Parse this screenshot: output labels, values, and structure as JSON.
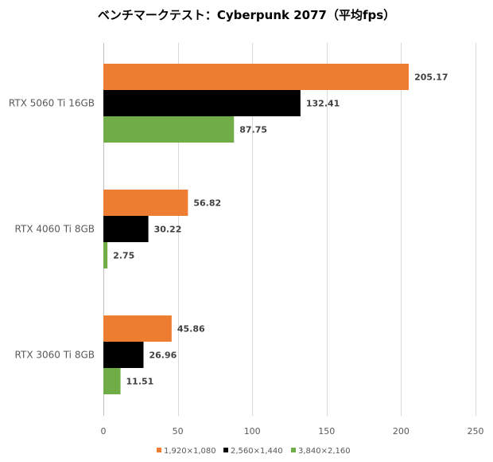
{
  "chart_data": {
    "type": "bar",
    "orientation": "horizontal",
    "title": "ベンチマークテスト：Cyberpunk 2077（平均fps）",
    "categories": [
      "RTX 5060 Ti 16GB",
      "RTX 4060 Ti 8GB",
      "RTX 3060 Ti 8GB"
    ],
    "series": [
      {
        "name": "1,920×1,080",
        "color": "#ed7d31",
        "values": [
          205.17,
          56.82,
          45.86
        ]
      },
      {
        "name": "2,560×1,440",
        "color": "#000000",
        "values": [
          132.41,
          30.22,
          26.96
        ]
      },
      {
        "name": "3,840×2,160",
        "color": "#70ad47",
        "values": [
          87.75,
          2.75,
          11.51
        ]
      }
    ],
    "xlim": [
      0,
      250
    ],
    "xticks": [
      0,
      50,
      100,
      150,
      200,
      250
    ],
    "xticks_labels": [
      "0",
      "50",
      "100",
      "150",
      "200",
      "250"
    ],
    "grid": "vertical",
    "legend_position": "bottom"
  }
}
